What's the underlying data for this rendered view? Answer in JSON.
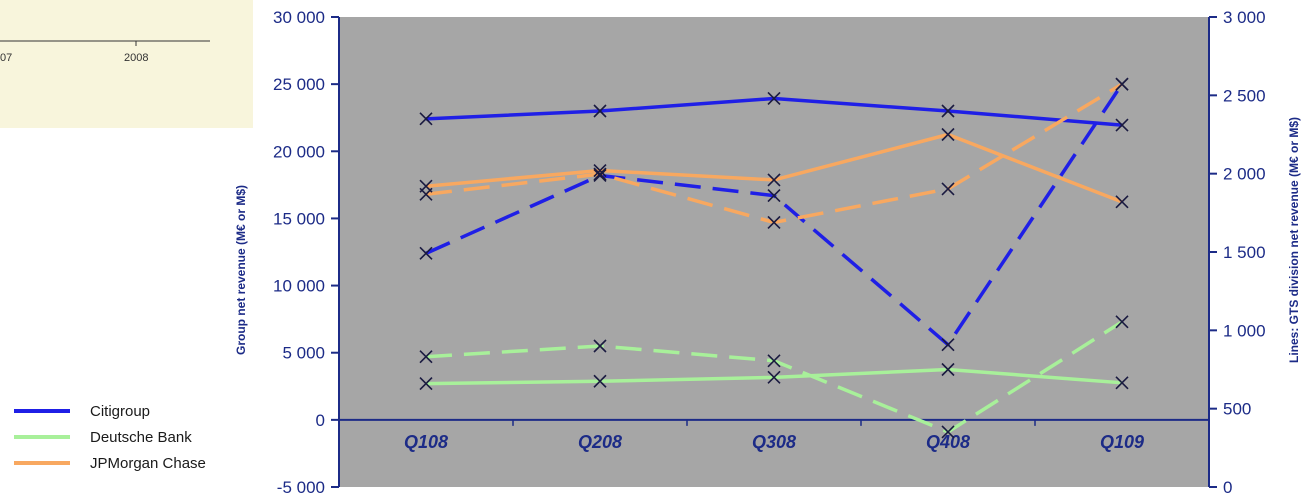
{
  "chart_data": {
    "type": "line",
    "categories": [
      "Q108",
      "Q208",
      "Q308",
      "Q408",
      "Q109"
    ],
    "y_left": {
      "label": "Group net revenue (M€ or M$)",
      "ylim": [
        -5000,
        30000
      ],
      "ticks": [
        "30 000",
        "25 000",
        "20 000",
        "15 000",
        "10 000",
        "5 000",
        "0",
        "-5 000"
      ]
    },
    "y_right": {
      "label": "Lines: GTS division net revenue  (M€ or M$)",
      "ylim": [
        0,
        3000
      ],
      "ticks": [
        "3 000",
        "2 500",
        "2 000",
        "1 500",
        "1 000",
        "500",
        "0"
      ]
    },
    "series": [
      {
        "name": "Citigroup",
        "color": "#1f1fe6",
        "dashed": true,
        "axis": "left",
        "values": [
          12400,
          18200,
          16700,
          5600,
          25000
        ]
      },
      {
        "name": "Citigroup",
        "color": "#1f1fe6",
        "dashed": false,
        "axis": "right",
        "values": [
          2350,
          2400,
          2480,
          2400,
          2310
        ]
      },
      {
        "name": "Deutsche Bank",
        "color": "#a8f09a",
        "dashed": true,
        "axis": "left",
        "values": [
          4700,
          5500,
          4400,
          -900,
          7300
        ]
      },
      {
        "name": "Deutsche Bank",
        "color": "#a8f09a",
        "dashed": false,
        "axis": "right",
        "values": [
          660,
          675,
          700,
          750,
          665
        ]
      },
      {
        "name": "JPMorgan Chase",
        "color": "#f8a860",
        "dashed": true,
        "axis": "left",
        "values": [
          16800,
          18300,
          14700,
          17200,
          25000
        ]
      },
      {
        "name": "JPMorgan Chase",
        "color": "#f8a860",
        "dashed": false,
        "axis": "right",
        "values": [
          1920,
          2020,
          1960,
          2250,
          1820
        ]
      }
    ],
    "legend": [
      "Citigroup",
      "Deutsche Bank",
      "JPMorgan Chase"
    ],
    "plot_background": "#a6a6a6",
    "axis_color": "#1c2b87",
    "category_label_color": "#1c2b87"
  },
  "inset": {
    "tick_labels": [
      "07",
      "2008"
    ],
    "background": "#f8f5dc"
  }
}
